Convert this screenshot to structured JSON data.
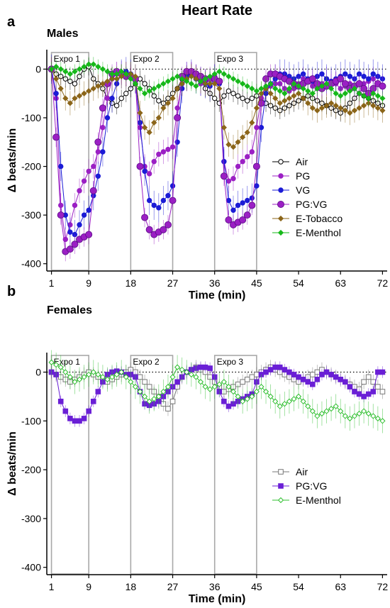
{
  "figure_title": "Heart Rate",
  "chart_data": [
    {
      "type": "line",
      "panel_label": "a",
      "subtitle": "Males",
      "xlabel": "Time (min)",
      "ylabel": "Δ beats/min",
      "xlim": [
        0,
        73
      ],
      "ylim": [
        -415,
        40
      ],
      "xticks": [
        1,
        9,
        18,
        27,
        36,
        45,
        54,
        63,
        72
      ],
      "yticks": [
        0,
        -100,
        -200,
        -300,
        -400
      ],
      "exposures": [
        {
          "label": "Expo 1",
          "start": 1,
          "end": 9
        },
        {
          "label": "Expo 2",
          "start": 18,
          "end": 27
        },
        {
          "label": "Expo 3",
          "start": 36,
          "end": 45
        }
      ],
      "legend": "right",
      "series": [
        {
          "name": "Air",
          "color": "#000000",
          "marker": "circle",
          "filled": false,
          "err": 18,
          "values": [
            0,
            -10,
            -15,
            -20,
            -25,
            -30,
            -15,
            0,
            5,
            -20,
            -30,
            -40,
            -60,
            -70,
            -75,
            -60,
            -50,
            -40,
            -30,
            -20,
            -30,
            -40,
            -55,
            -65,
            -70,
            -60,
            -50,
            -40,
            -20,
            -10,
            -5,
            -10,
            -20,
            -40,
            -50,
            -60,
            -70,
            -55,
            -45,
            -50,
            -55,
            -60,
            -65,
            -60,
            -55,
            -60,
            -70,
            -75,
            -80,
            -85,
            -80,
            -75,
            -70,
            -65,
            -60,
            -55,
            -60,
            -65,
            -70,
            -75,
            -80,
            -85,
            -90,
            -80,
            -70,
            -60,
            -50,
            -55,
            -60,
            -65,
            -70,
            -75
          ]
        },
        {
          "name": "PG",
          "color": "#9b1fc4",
          "marker": "circle",
          "filled": true,
          "err": 25,
          "values": [
            0,
            -60,
            -280,
            -350,
            -320,
            -280,
            -250,
            -230,
            -210,
            -200,
            -170,
            -120,
            -60,
            -20,
            -10,
            -8,
            -10,
            -15,
            -25,
            -120,
            -200,
            -215,
            -190,
            -175,
            -170,
            -165,
            -160,
            -80,
            -30,
            -20,
            -10,
            -20,
            -30,
            -25,
            -20,
            -15,
            -30,
            -190,
            -230,
            -225,
            -200,
            -190,
            -180,
            -170,
            -120,
            -60,
            -40,
            -35,
            -30,
            -30,
            -40,
            -45,
            -40,
            -30,
            -20,
            -25,
            -35,
            -40,
            -30,
            -20,
            -25,
            -30,
            -40,
            -35,
            -30,
            -40,
            -50,
            -30,
            -25,
            -20,
            -30,
            -35
          ]
        },
        {
          "name": "VG",
          "color": "#1b1bd6",
          "marker": "circle",
          "filled": true,
          "err": 30,
          "values": [
            0,
            -50,
            -200,
            -300,
            -335,
            -340,
            -320,
            -300,
            -290,
            -260,
            -220,
            -170,
            -100,
            -60,
            -30,
            -10,
            -5,
            -10,
            -20,
            -110,
            -210,
            -270,
            -280,
            -285,
            -270,
            -260,
            -240,
            -150,
            -40,
            -15,
            -10,
            -20,
            -25,
            -30,
            -35,
            -20,
            -30,
            -190,
            -270,
            -290,
            -280,
            -275,
            -270,
            -265,
            -240,
            -120,
            -50,
            -30,
            -20,
            -10,
            -10,
            -15,
            -20,
            -15,
            -10,
            -20,
            -25,
            -15,
            -10,
            -20,
            -25,
            -20,
            -15,
            -10,
            -15,
            -20,
            -10,
            -15,
            -20,
            -10,
            -15,
            -20
          ]
        },
        {
          "name": "PG:VG",
          "color": "#9b1fc4",
          "marker": "bigdot",
          "filled": true,
          "err": 20,
          "values": [
            0,
            -140,
            -300,
            -375,
            -370,
            -360,
            -350,
            -345,
            -340,
            -250,
            -150,
            -80,
            -30,
            -10,
            -5,
            -10,
            -15,
            -15,
            -20,
            -200,
            -305,
            -330,
            -340,
            -335,
            -330,
            -320,
            -270,
            -100,
            -15,
            -5,
            -5,
            -10,
            -15,
            -20,
            -20,
            -20,
            -25,
            -220,
            -310,
            -320,
            -315,
            -310,
            -300,
            -280,
            -200,
            -70,
            -20,
            -10,
            -10,
            -15,
            -20,
            -25,
            -30,
            -35,
            -30,
            -25,
            -20,
            -30,
            -40,
            -35,
            -30,
            -25,
            -20,
            -30,
            -40,
            -35,
            -30,
            -40,
            -50,
            -40,
            -30,
            -35
          ]
        },
        {
          "name": "E-Tobacco",
          "color": "#8b6519",
          "marker": "diamond",
          "filled": true,
          "err": 25,
          "values": [
            0,
            -20,
            -40,
            -60,
            -70,
            -60,
            -55,
            -50,
            -45,
            -40,
            -35,
            -30,
            -25,
            -20,
            -20,
            -15,
            -10,
            -10,
            -15,
            -90,
            -120,
            -130,
            -110,
            -100,
            -80,
            -70,
            -60,
            -40,
            -30,
            -20,
            -15,
            -20,
            -25,
            -30,
            -30,
            -30,
            -40,
            -120,
            -155,
            -160,
            -150,
            -140,
            -130,
            -110,
            -80,
            -50,
            -40,
            -50,
            -60,
            -70,
            -65,
            -60,
            -55,
            -50,
            -60,
            -70,
            -80,
            -85,
            -80,
            -75,
            -70,
            -75,
            -80,
            -85,
            -90,
            -85,
            -80,
            -75,
            -70,
            -75,
            -80,
            -85
          ]
        },
        {
          "name": "E-Menthol",
          "color": "#16b81a",
          "marker": "diamond",
          "filled": true,
          "err": 15,
          "values": [
            0,
            5,
            0,
            -5,
            -10,
            -5,
            0,
            5,
            10,
            10,
            5,
            0,
            -5,
            -10,
            -10,
            -5,
            -10,
            -20,
            -30,
            -40,
            -50,
            -45,
            -40,
            -35,
            -30,
            -25,
            -20,
            -15,
            -20,
            -25,
            -30,
            -35,
            -25,
            -20,
            -15,
            -10,
            -5,
            -10,
            -15,
            -20,
            -25,
            -30,
            -35,
            -40,
            -45,
            -40,
            -35,
            -30,
            -40,
            -45,
            -50,
            -40,
            -30,
            -35,
            -40,
            -45,
            -50,
            -40,
            -35,
            -30,
            -40,
            -50,
            -55,
            -50,
            -45,
            -40,
            -50,
            -55,
            -60,
            -50,
            -55,
            -60
          ]
        }
      ]
    },
    {
      "type": "line",
      "panel_label": "b",
      "subtitle": "Females",
      "xlabel": "Time (min)",
      "ylabel": "Δ beats/min",
      "xlim": [
        0,
        73
      ],
      "ylim": [
        -415,
        40
      ],
      "xticks": [
        1,
        9,
        18,
        27,
        36,
        45,
        54,
        63,
        72
      ],
      "yticks": [
        0,
        -100,
        -200,
        -300,
        -400
      ],
      "exposures": [
        {
          "label": "Expo 1",
          "start": 1,
          "end": 9
        },
        {
          "label": "Expo 2",
          "start": 18,
          "end": 27
        },
        {
          "label": "Expo 3",
          "start": 36,
          "end": 45
        }
      ],
      "legend": "right",
      "series": [
        {
          "name": "Air",
          "color": "#777777",
          "marker": "square",
          "filled": false,
          "err": 15,
          "values": [
            0,
            -5,
            -10,
            -15,
            -20,
            -15,
            -10,
            -5,
            0,
            -5,
            -10,
            -15,
            -20,
            -15,
            -10,
            -5,
            0,
            5,
            0,
            -10,
            -20,
            -30,
            -40,
            -50,
            -65,
            -75,
            -60,
            -30,
            -10,
            0,
            5,
            10,
            5,
            0,
            -10,
            -20,
            -30,
            -40,
            -35,
            -30,
            -25,
            -20,
            -15,
            -10,
            -5,
            0,
            5,
            10,
            5,
            0,
            -5,
            -10,
            -15,
            -20,
            -15,
            -10,
            -5,
            0,
            5,
            0,
            -5,
            -10,
            -15,
            -20,
            -25,
            -30,
            -35,
            -20,
            -10,
            -20,
            -30,
            -40
          ]
        },
        {
          "name": "PG:VG",
          "color": "#6a1fd6",
          "marker": "square",
          "filled": true,
          "err": 12,
          "values": [
            0,
            -5,
            -60,
            -80,
            -95,
            -100,
            -100,
            -95,
            -80,
            -60,
            -40,
            -20,
            -5,
            0,
            2,
            0,
            -5,
            -5,
            -10,
            -40,
            -65,
            -68,
            -65,
            -60,
            -50,
            -40,
            -30,
            -20,
            -10,
            0,
            5,
            8,
            10,
            10,
            8,
            -10,
            -40,
            -60,
            -70,
            -65,
            -60,
            -55,
            -50,
            -45,
            -20,
            -5,
            0,
            5,
            10,
            10,
            5,
            0,
            -5,
            -10,
            -15,
            -20,
            -25,
            -15,
            -5,
            0,
            -5,
            -10,
            -15,
            -20,
            -30,
            -40,
            -45,
            -50,
            -45,
            -40,
            0,
            0
          ]
        },
        {
          "name": "E-Menthol",
          "color": "#2fbf2f",
          "marker": "diamond",
          "filled": false,
          "err": 25,
          "values": [
            20,
            15,
            10,
            0,
            -10,
            -20,
            -15,
            -10,
            -5,
            0,
            -5,
            -10,
            -15,
            -10,
            -5,
            0,
            -10,
            -20,
            -30,
            -40,
            -50,
            -60,
            -55,
            -50,
            -40,
            -30,
            -10,
            10,
            5,
            0,
            -5,
            -10,
            -20,
            -30,
            -35,
            -30,
            -25,
            -20,
            -30,
            -40,
            -50,
            -60,
            -55,
            -50,
            -40,
            -30,
            -40,
            -50,
            -60,
            -70,
            -65,
            -60,
            -55,
            -50,
            -60,
            -70,
            -80,
            -90,
            -85,
            -80,
            -75,
            -70,
            -80,
            -90,
            -95,
            -90,
            -85,
            -80,
            -85,
            -90,
            -95,
            -100
          ]
        }
      ]
    }
  ]
}
